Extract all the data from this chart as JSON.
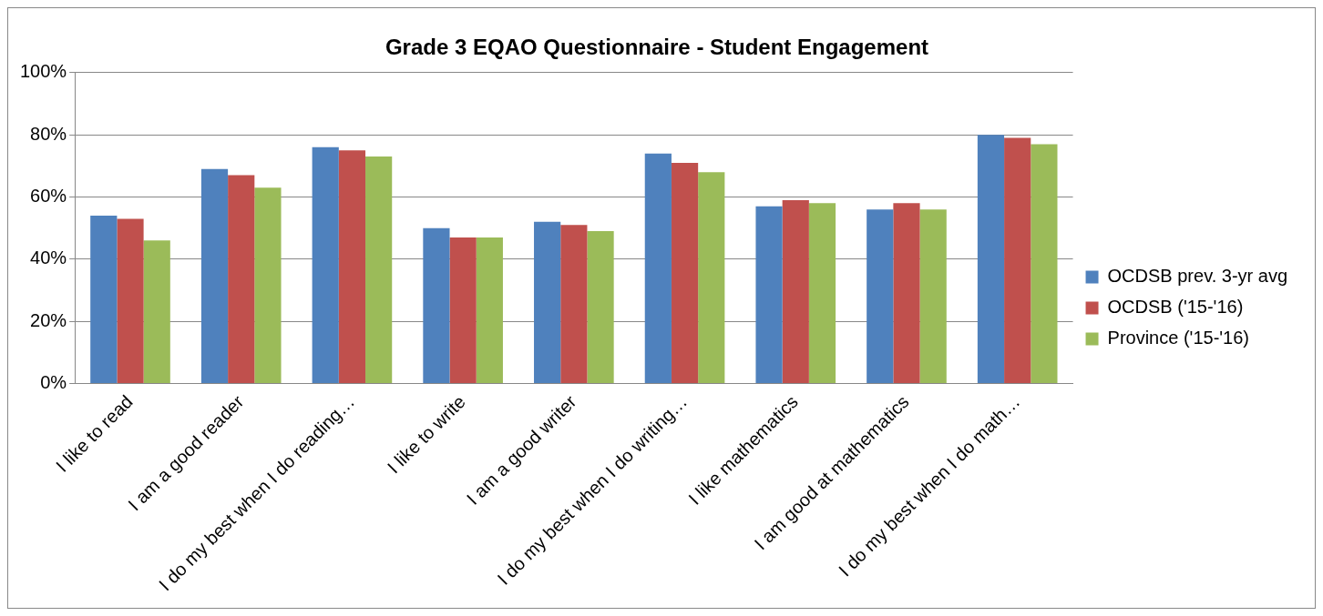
{
  "chart_data": {
    "type": "bar",
    "title": "Grade 3 EQAO Questionnaire - Student Engagement",
    "categories": [
      "I like to read",
      "I am a good reader",
      "I do my best when I do reading…",
      "I like to write",
      "I am a good writer",
      "I do my best when I do writing…",
      "I like mathematics",
      "I am good at mathematics",
      "I do my best when I do math…"
    ],
    "series": [
      {
        "name": "OCDSB prev. 3-yr avg",
        "color": "#4f81bd",
        "values": [
          54,
          69,
          76,
          50,
          52,
          74,
          57,
          56,
          80
        ]
      },
      {
        "name": "OCDSB ('15-'16)",
        "color": "#c0504d",
        "values": [
          53,
          67,
          75,
          47,
          51,
          71,
          59,
          58,
          79
        ]
      },
      {
        "name": "Province ('15-'16)",
        "color": "#9bbb59",
        "values": [
          46,
          63,
          73,
          47,
          49,
          68,
          58,
          56,
          77
        ]
      }
    ],
    "ylim": [
      0,
      100
    ],
    "yticks": [
      {
        "value": 0,
        "label": "0%"
      },
      {
        "value": 20,
        "label": "20%"
      },
      {
        "value": 40,
        "label": "40%"
      },
      {
        "value": 60,
        "label": "60%"
      },
      {
        "value": 80,
        "label": "80%"
      },
      {
        "value": 100,
        "label": "100%"
      }
    ],
    "grid": "y",
    "legend": "right"
  }
}
